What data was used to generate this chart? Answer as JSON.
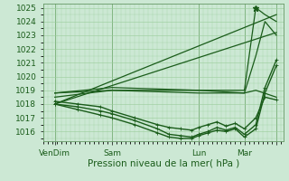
{
  "xlabel": "Pression niveau de la mer( hPa )",
  "ylim": [
    1015.3,
    1025.3
  ],
  "xlim": [
    0,
    105
  ],
  "yticks": [
    1016,
    1017,
    1018,
    1019,
    1020,
    1021,
    1022,
    1023,
    1024,
    1025
  ],
  "xtick_positions": [
    5,
    30,
    68,
    88,
    102
  ],
  "xtick_labels": [
    "VenDim",
    "Sam",
    "Lun",
    "Mar",
    ""
  ],
  "vlines": [
    5,
    30,
    68,
    88,
    102
  ],
  "bg_color": "#cce8d4",
  "grid_color": "#99cc99",
  "line_color": "#1a5c1a",
  "font_color": "#1a5c1a",
  "tick_fontsize": 6.5,
  "xlabel_fontsize": 7.5,
  "lines": [
    {
      "x": [
        5,
        102
      ],
      "y": [
        1018.0,
        1024.5
      ],
      "lw": 0.9,
      "marker": false
    },
    {
      "x": [
        5,
        102
      ],
      "y": [
        1018.0,
        1023.2
      ],
      "lw": 0.9,
      "marker": false
    },
    {
      "x": [
        5,
        30,
        68,
        88,
        93,
        97,
        102
      ],
      "y": [
        1018.8,
        1019.2,
        1019.0,
        1019.0,
        1025.0,
        1024.5,
        1024.0
      ],
      "lw": 0.9,
      "marker": false
    },
    {
      "x": [
        5,
        30,
        68,
        88,
        93,
        97,
        102
      ],
      "y": [
        1018.5,
        1019.0,
        1019.0,
        1018.8,
        1021.5,
        1024.0,
        1023.0
      ],
      "lw": 0.9,
      "marker": false
    },
    {
      "x": [
        5,
        15,
        25,
        30,
        40,
        50,
        55,
        60,
        65,
        68,
        72,
        76,
        80,
        84,
        88,
        93,
        97,
        102
      ],
      "y": [
        1018.0,
        1017.8,
        1017.5,
        1017.3,
        1016.8,
        1016.2,
        1015.8,
        1015.7,
        1015.6,
        1015.8,
        1016.0,
        1016.3,
        1016.1,
        1016.3,
        1015.8,
        1016.5,
        1019.2,
        1021.2
      ],
      "lw": 1.0,
      "marker": true
    },
    {
      "x": [
        5,
        15,
        25,
        30,
        40,
        50,
        55,
        60,
        65,
        68,
        72,
        76,
        80,
        84,
        88,
        93,
        97,
        102
      ],
      "y": [
        1018.0,
        1017.6,
        1017.2,
        1017.0,
        1016.5,
        1015.9,
        1015.6,
        1015.5,
        1015.5,
        1015.7,
        1015.9,
        1016.1,
        1016.0,
        1016.2,
        1015.6,
        1016.2,
        1018.8,
        1020.8
      ],
      "lw": 1.0,
      "marker": true
    },
    {
      "x": [
        5,
        15,
        25,
        30,
        40,
        50,
        55,
        60,
        65,
        68,
        72,
        76,
        80,
        84,
        88,
        93,
        97,
        102
      ],
      "y": [
        1018.2,
        1018.0,
        1017.8,
        1017.5,
        1017.0,
        1016.5,
        1016.3,
        1016.2,
        1016.1,
        1016.3,
        1016.5,
        1016.7,
        1016.4,
        1016.6,
        1016.2,
        1017.0,
        1018.5,
        1018.3
      ],
      "lw": 1.0,
      "marker": true
    },
    {
      "x": [
        5,
        30,
        68,
        88,
        93,
        102
      ],
      "y": [
        1018.8,
        1019.0,
        1018.8,
        1018.8,
        1019.0,
        1018.5
      ],
      "lw": 0.9,
      "marker": false
    }
  ]
}
